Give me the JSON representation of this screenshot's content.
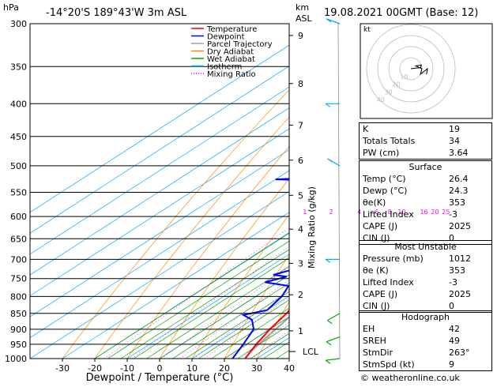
{
  "header": {
    "location": "-14°20'S  189°43'W  3m ASL",
    "datetime": "19.08.2021  00GMT  (Base: 12)",
    "pressure_unit": "hPa",
    "km_unit": "km",
    "asl_unit": "ASL"
  },
  "footer": {
    "copyright": "© weatheronline.co.uk"
  },
  "chart_data": {
    "type": "skew-t",
    "xlabel": "Dewpoint / Temperature (°C)",
    "ylabel_right": "Mixing Ratio (g/kg)",
    "x_ticks": [
      -30,
      -20,
      -10,
      0,
      10,
      20,
      30,
      40
    ],
    "pressure_levels": [
      300,
      350,
      400,
      450,
      500,
      550,
      600,
      650,
      700,
      750,
      800,
      850,
      900,
      950,
      1000
    ],
    "km_ticks": [
      {
        "km": "1",
        "p": 905
      },
      {
        "km": "2",
        "p": 795
      },
      {
        "km": "3",
        "p": 710
      },
      {
        "km": "4",
        "p": 628
      },
      {
        "km": "5",
        "p": 556
      },
      {
        "km": "6",
        "p": 490
      },
      {
        "km": "7",
        "p": 432
      },
      {
        "km": "8",
        "p": 372
      },
      {
        "km": "9",
        "p": 313
      }
    ],
    "lcl_label": "LCL",
    "lcl_pressure": 975,
    "mixing_ratio_labels": [
      "1",
      "2",
      "4",
      "6",
      "8",
      "10",
      "16",
      "20",
      "25"
    ],
    "legend": [
      {
        "name": "Temperature",
        "color": "#ff0000",
        "dash": "solid"
      },
      {
        "name": "Dewpoint",
        "color": "#0000ff",
        "dash": "solid"
      },
      {
        "name": "Parcel Trajectory",
        "color": "#a0a0a0",
        "dash": "solid"
      },
      {
        "name": "Dry Adiabat",
        "color": "#ff8c00",
        "dash": "solid"
      },
      {
        "name": "Wet Adiabat",
        "color": "#00aa00",
        "dash": "solid"
      },
      {
        "name": "Isotherm",
        "color": "#00aaff",
        "dash": "solid"
      },
      {
        "name": "Mixing Ratio",
        "color": "#ff00ff",
        "dash": "dotted"
      }
    ],
    "temperature": [
      {
        "p": 1000,
        "t": 26.4
      },
      {
        "p": 950,
        "t": 23.0
      },
      {
        "p": 900,
        "t": 20.0
      },
      {
        "p": 850,
        "t": 17.5
      },
      {
        "p": 800,
        "t": 14.5
      },
      {
        "p": 750,
        "t": 11.5
      },
      {
        "p": 700,
        "t": 9.0
      },
      {
        "p": 650,
        "t": 5.5
      },
      {
        "p": 600,
        "t": 2.0
      },
      {
        "p": 550,
        "t": -2.5
      },
      {
        "p": 500,
        "t": -7.0
      },
      {
        "p": 450,
        "t": -13.0
      },
      {
        "p": 400,
        "t": -19.5
      },
      {
        "p": 350,
        "t": -27.5
      },
      {
        "p": 300,
        "t": -36.0
      }
    ],
    "dewpoint": [
      {
        "p": 1000,
        "t": 22.5
      },
      {
        "p": 950,
        "t": 19.0
      },
      {
        "p": 900,
        "t": 15.0
      },
      {
        "p": 870,
        "t": 10.0
      },
      {
        "p": 855,
        "t": 5.0
      },
      {
        "p": 840,
        "t": 10.0
      },
      {
        "p": 800,
        "t": 8.0
      },
      {
        "p": 770,
        "t": 5.0
      },
      {
        "p": 760,
        "t": -4.0
      },
      {
        "p": 745,
        "t": 0.0
      },
      {
        "p": 740,
        "t": -5.0
      },
      {
        "p": 720,
        "t": 0.0
      },
      {
        "p": 700,
        "t": 0.0
      },
      {
        "p": 660,
        "t": 0.0
      },
      {
        "p": 640,
        "t": -5.0
      },
      {
        "p": 620,
        "t": -6.0
      },
      {
        "p": 600,
        "t": -10.0
      },
      {
        "p": 580,
        "t": -10.0
      },
      {
        "p": 555,
        "t": -13.0
      },
      {
        "p": 545,
        "t": -18.0
      },
      {
        "p": 540,
        "t": -14.0
      },
      {
        "p": 530,
        "t": -14.0
      },
      {
        "p": 525,
        "t": -50.0
      },
      {
        "p": 515,
        "t": -12.0
      },
      {
        "p": 500,
        "t": -25.0
      },
      {
        "p": 450,
        "t": -35.0
      },
      {
        "p": 430,
        "t": -40.0
      },
      {
        "p": 400,
        "t": -15.0
      },
      {
        "p": 395,
        "t": -25.0
      },
      {
        "p": 370,
        "t": -30.0
      },
      {
        "p": 350,
        "t": -40.0
      },
      {
        "p": 320,
        "t": -40.0
      },
      {
        "p": 300,
        "t": -50.0
      }
    ],
    "parcel": [
      {
        "p": 1000,
        "t": 26.4
      },
      {
        "p": 975,
        "t": 24.7
      },
      {
        "p": 900,
        "t": 21.8
      },
      {
        "p": 800,
        "t": 17.5
      },
      {
        "p": 700,
        "t": 12.5
      },
      {
        "p": 600,
        "t": 6.5
      },
      {
        "p": 500,
        "t": -1.0
      },
      {
        "p": 400,
        "t": -11.5
      },
      {
        "p": 350,
        "t": -18.5
      },
      {
        "p": 300,
        "t": -27.0
      }
    ],
    "wind_barbs": [
      {
        "p": 1000,
        "dir": 263,
        "spd": 9
      },
      {
        "p": 925,
        "dir": 250,
        "spd": 10
      },
      {
        "p": 850,
        "dir": 240,
        "spd": 5
      },
      {
        "p": 700,
        "dir": 270,
        "spd": 10
      },
      {
        "p": 500,
        "dir": 300,
        "spd": 10
      },
      {
        "p": 400,
        "dir": 270,
        "spd": 15
      },
      {
        "p": 300,
        "dir": 290,
        "spd": 15
      }
    ],
    "hodograph": {
      "label": "kt",
      "ring_labels": [
        "10",
        "20",
        "30",
        "40"
      ]
    }
  },
  "stats": {
    "rows": [
      {
        "label": "K",
        "value": "19"
      },
      {
        "label": "Totals Totals",
        "value": "34"
      },
      {
        "label": "PW (cm)",
        "value": "3.64"
      }
    ]
  },
  "surface": {
    "title": "Surface",
    "rows": [
      {
        "label": "Temp (°C)",
        "value": "26.4"
      },
      {
        "label": "Dewp (°C)",
        "value": "24.3"
      },
      {
        "label": "θe(K)",
        "value": "353"
      },
      {
        "label": "Lifted Index",
        "value": "-3"
      },
      {
        "label": "CAPE (J)",
        "value": "2025"
      },
      {
        "label": "CIN (J)",
        "value": "0"
      }
    ]
  },
  "unstable": {
    "title": "Most Unstable",
    "rows": [
      {
        "label": "Pressure (mb)",
        "value": "1012"
      },
      {
        "label": "θe (K)",
        "value": "353"
      },
      {
        "label": "Lifted Index",
        "value": "-3"
      },
      {
        "label": "CAPE (J)",
        "value": "2025"
      },
      {
        "label": "CIN (J)",
        "value": "0"
      }
    ]
  },
  "hodo_table": {
    "title": "Hodograph",
    "rows": [
      {
        "label": "EH",
        "value": "42"
      },
      {
        "label": "SREH",
        "value": "49"
      },
      {
        "label": "StmDir",
        "value": "263°"
      },
      {
        "label": "StmSpd (kt)",
        "value": "9"
      }
    ]
  }
}
